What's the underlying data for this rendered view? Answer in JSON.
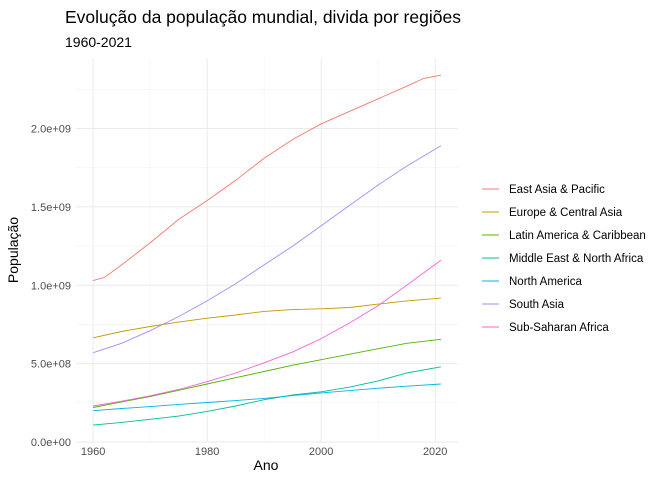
{
  "chart_data": {
    "type": "line",
    "title": "Evolução da população mundial, divida por regiões",
    "subtitle": "1960-2021",
    "xlabel": "Ano",
    "ylabel": "População",
    "xlim": [
      1957,
      2024
    ],
    "ylim": [
      0,
      2450000000
    ],
    "x_ticks": [
      1960,
      1980,
      2000,
      2020
    ],
    "x_tick_labels": [
      "1960",
      "1980",
      "2000",
      "2020"
    ],
    "y_ticks": [
      0,
      500000000,
      1000000000,
      1500000000,
      2000000000
    ],
    "y_tick_labels": [
      "0.0e+00",
      "5.0e+08",
      "1.0e+09",
      "1.5e+09",
      "2.0e+09"
    ],
    "grid": true,
    "legend_position": "right",
    "series": [
      {
        "name": "East Asia & Pacific",
        "color": "#F8766D",
        "points": [
          [
            1960,
            1030000000
          ],
          [
            1962,
            1050000000
          ],
          [
            1965,
            1130000000
          ],
          [
            1970,
            1270000000
          ],
          [
            1975,
            1420000000
          ],
          [
            1980,
            1540000000
          ],
          [
            1985,
            1670000000
          ],
          [
            1990,
            1810000000
          ],
          [
            1995,
            1930000000
          ],
          [
            2000,
            2030000000
          ],
          [
            2005,
            2110000000
          ],
          [
            2010,
            2190000000
          ],
          [
            2015,
            2270000000
          ],
          [
            2018,
            2320000000
          ],
          [
            2021,
            2340000000
          ]
        ]
      },
      {
        "name": "Europe & Central Asia",
        "color": "#C49A00",
        "points": [
          [
            1960,
            665000000
          ],
          [
            1965,
            705000000
          ],
          [
            1970,
            737000000
          ],
          [
            1975,
            765000000
          ],
          [
            1980,
            790000000
          ],
          [
            1985,
            810000000
          ],
          [
            1990,
            833000000
          ],
          [
            1995,
            845000000
          ],
          [
            2000,
            850000000
          ],
          [
            2005,
            858000000
          ],
          [
            2010,
            880000000
          ],
          [
            2015,
            900000000
          ],
          [
            2021,
            918000000
          ]
        ]
      },
      {
        "name": "Latin America & Caribbean",
        "color": "#53B400",
        "points": [
          [
            1960,
            220000000
          ],
          [
            1965,
            256000000
          ],
          [
            1970,
            290000000
          ],
          [
            1975,
            330000000
          ],
          [
            1980,
            370000000
          ],
          [
            1985,
            410000000
          ],
          [
            1990,
            450000000
          ],
          [
            1995,
            490000000
          ],
          [
            2000,
            525000000
          ],
          [
            2005,
            560000000
          ],
          [
            2010,
            595000000
          ],
          [
            2015,
            630000000
          ],
          [
            2021,
            655000000
          ]
        ]
      },
      {
        "name": "Middle East & North Africa",
        "color": "#00C094",
        "points": [
          [
            1960,
            108000000
          ],
          [
            1965,
            125000000
          ],
          [
            1970,
            145000000
          ],
          [
            1975,
            165000000
          ],
          [
            1980,
            195000000
          ],
          [
            1985,
            230000000
          ],
          [
            1990,
            270000000
          ],
          [
            1995,
            300000000
          ],
          [
            2000,
            320000000
          ],
          [
            2005,
            350000000
          ],
          [
            2010,
            390000000
          ],
          [
            2015,
            440000000
          ],
          [
            2021,
            480000000
          ]
        ]
      },
      {
        "name": "North America",
        "color": "#00B6EB",
        "points": [
          [
            1960,
            200000000
          ],
          [
            1965,
            214000000
          ],
          [
            1970,
            226000000
          ],
          [
            1975,
            240000000
          ],
          [
            1980,
            252000000
          ],
          [
            1985,
            264000000
          ],
          [
            1990,
            278000000
          ],
          [
            1995,
            296000000
          ],
          [
            2000,
            313000000
          ],
          [
            2005,
            328000000
          ],
          [
            2010,
            343000000
          ],
          [
            2015,
            356000000
          ],
          [
            2021,
            370000000
          ]
        ]
      },
      {
        "name": "South Asia",
        "color": "#A58AFF",
        "points": [
          [
            1960,
            570000000
          ],
          [
            1965,
            630000000
          ],
          [
            1970,
            710000000
          ],
          [
            1975,
            800000000
          ],
          [
            1980,
            900000000
          ],
          [
            1985,
            1010000000
          ],
          [
            1990,
            1130000000
          ],
          [
            1995,
            1250000000
          ],
          [
            2000,
            1380000000
          ],
          [
            2005,
            1510000000
          ],
          [
            2010,
            1640000000
          ],
          [
            2015,
            1760000000
          ],
          [
            2021,
            1890000000
          ]
        ]
      },
      {
        "name": "Sub-Saharan Africa",
        "color": "#FB61D7",
        "points": [
          [
            1960,
            230000000
          ],
          [
            1965,
            260000000
          ],
          [
            1970,
            295000000
          ],
          [
            1975,
            335000000
          ],
          [
            1980,
            385000000
          ],
          [
            1985,
            440000000
          ],
          [
            1990,
            505000000
          ],
          [
            1995,
            575000000
          ],
          [
            2000,
            660000000
          ],
          [
            2005,
            760000000
          ],
          [
            2010,
            870000000
          ],
          [
            2015,
            1000000000
          ],
          [
            2021,
            1160000000
          ]
        ]
      }
    ]
  }
}
